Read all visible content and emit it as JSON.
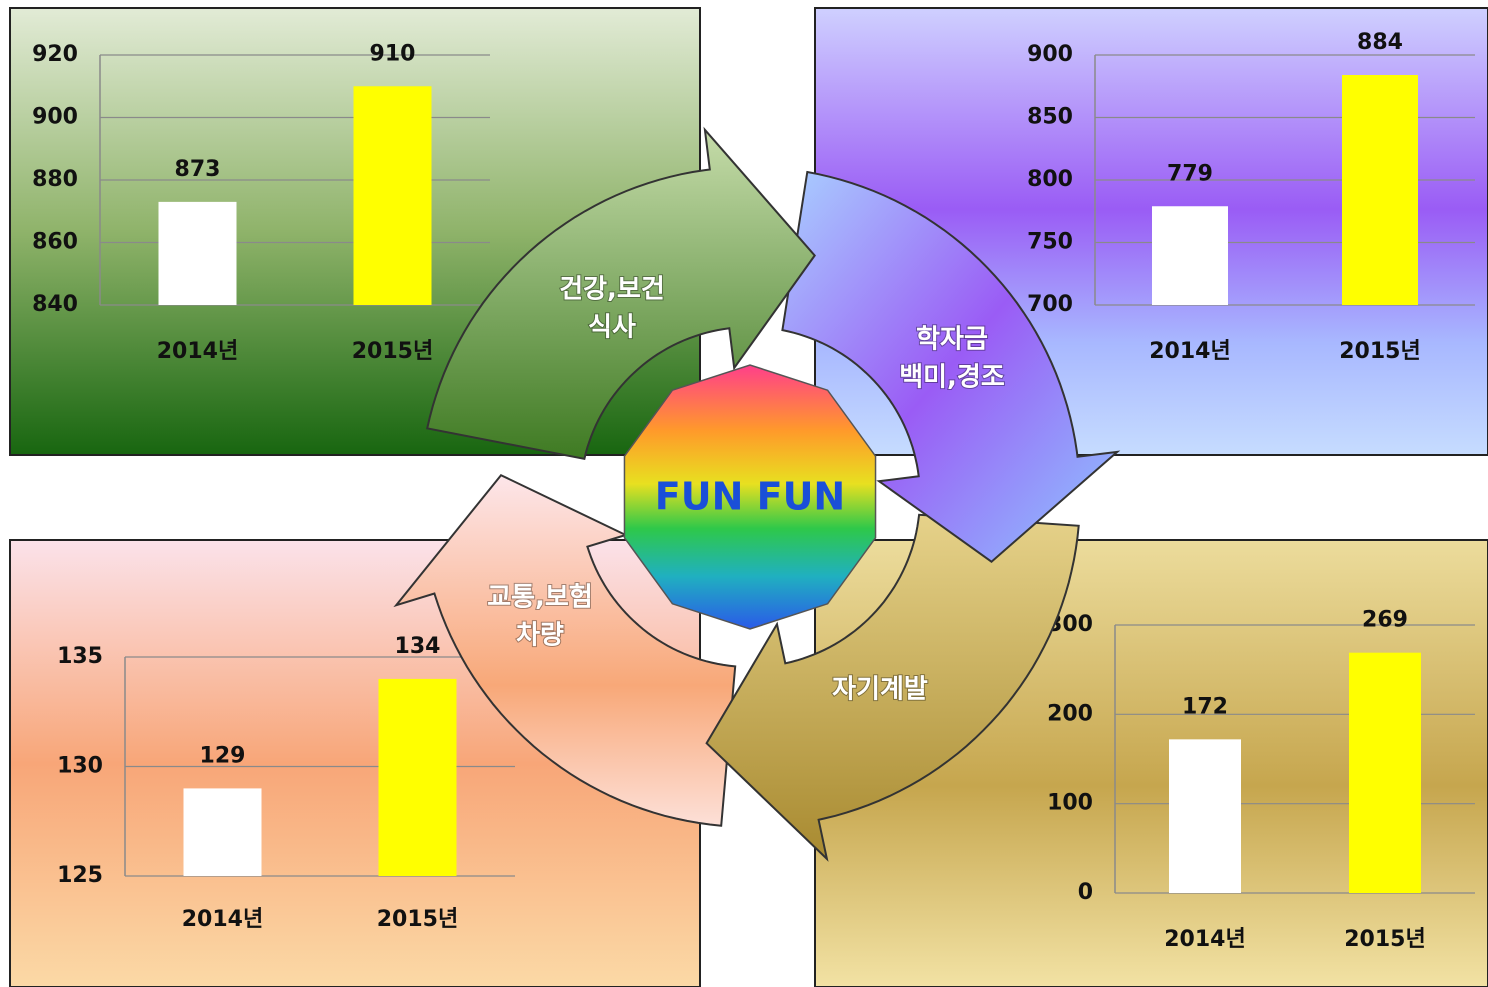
{
  "chart_data": [
    {
      "type": "bar",
      "categories": [
        "2014년",
        "2015년"
      ],
      "values": [
        873,
        910
      ],
      "colors": [
        "#ffffff",
        "#ffff00"
      ],
      "ylim": [
        840,
        920
      ],
      "yticks": [
        840,
        860,
        880,
        900,
        920
      ],
      "grid": true
    },
    {
      "type": "bar",
      "categories": [
        "2014년",
        "2015년"
      ],
      "values": [
        779,
        884
      ],
      "colors": [
        "#ffffff",
        "#ffff00"
      ],
      "ylim": [
        700,
        900
      ],
      "yticks": [
        700,
        750,
        800,
        850,
        900
      ],
      "grid": true
    },
    {
      "type": "bar",
      "categories": [
        "2014년",
        "2015년"
      ],
      "values": [
        129,
        134
      ],
      "colors": [
        "#ffffff",
        "#ffff00"
      ],
      "ylim": [
        125,
        135
      ],
      "yticks": [
        125,
        130,
        135
      ],
      "grid": true
    },
    {
      "type": "bar",
      "categories": [
        "2014년",
        "2015년"
      ],
      "values": [
        172,
        269
      ],
      "colors": [
        "#ffffff",
        "#ffff00"
      ],
      "ylim": [
        0,
        300
      ],
      "yticks": [
        0,
        100,
        200,
        300
      ],
      "grid": true
    }
  ],
  "diagram": {
    "center": "FUN FUN",
    "segments": [
      {
        "lines": [
          "건강,보건",
          "식사"
        ]
      },
      {
        "lines": [
          "학자금",
          "백미,경조"
        ]
      },
      {
        "lines": [
          "자기계발"
        ]
      },
      {
        "lines": [
          "교통,보험",
          "차량"
        ]
      }
    ]
  }
}
